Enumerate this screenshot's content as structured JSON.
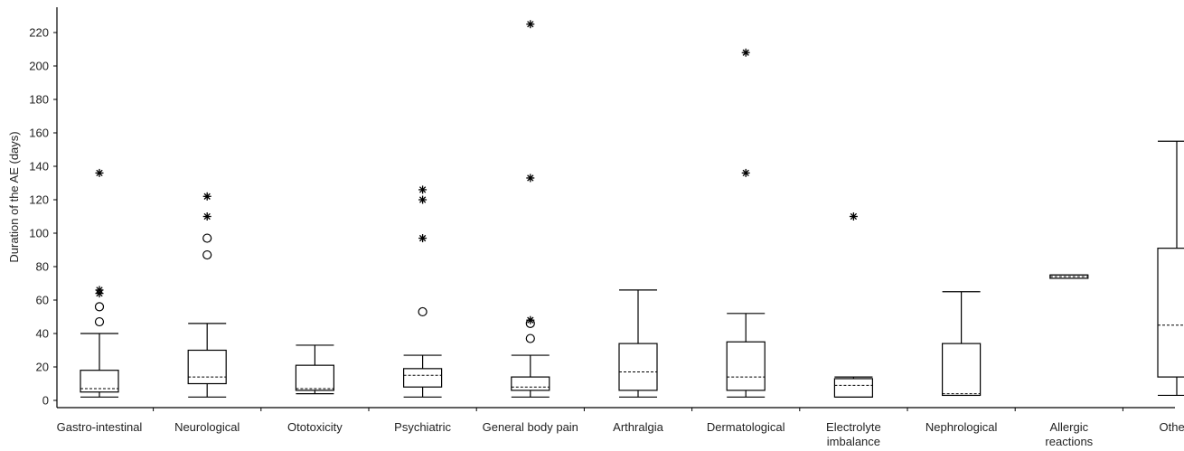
{
  "chart_data": {
    "type": "box",
    "ylabel": "Duration of the AE (days)",
    "ylim": [
      0,
      230
    ],
    "yticks": [
      0,
      20,
      40,
      60,
      80,
      100,
      120,
      140,
      160,
      180,
      200,
      220
    ],
    "grid": false,
    "legend": "none",
    "categories": [
      {
        "label": [
          "Gastro-intestinal"
        ],
        "whisker_low": 2,
        "q1": 5,
        "median": 7,
        "q3": 18,
        "whisker_high": 40,
        "outliers_circle": [
          47,
          56
        ],
        "outliers_star": [
          64,
          66,
          136
        ]
      },
      {
        "label": [
          "Neurological"
        ],
        "whisker_low": 2,
        "q1": 10,
        "median": 14,
        "q3": 30,
        "whisker_high": 46,
        "outliers_circle": [
          87,
          97
        ],
        "outliers_star": [
          110,
          122
        ]
      },
      {
        "label": [
          "Ototoxicity"
        ],
        "whisker_low": 4,
        "q1": 6,
        "median": 7,
        "q3": 21,
        "whisker_high": 33,
        "outliers_circle": [],
        "outliers_star": []
      },
      {
        "label": [
          "Psychiatric"
        ],
        "whisker_low": 2,
        "q1": 8,
        "median": 15,
        "q3": 19,
        "whisker_high": 27,
        "outliers_circle": [
          53
        ],
        "outliers_star": [
          97,
          120,
          126
        ]
      },
      {
        "label": [
          "General body pain"
        ],
        "whisker_low": 2,
        "q1": 6,
        "median": 8,
        "q3": 14,
        "whisker_high": 27,
        "outliers_circle": [
          37,
          46
        ],
        "outliers_star": [
          48,
          133,
          225
        ]
      },
      {
        "label": [
          "Arthralgia"
        ],
        "whisker_low": 2,
        "q1": 6,
        "median": 17,
        "q3": 34,
        "whisker_high": 66,
        "outliers_circle": [],
        "outliers_star": []
      },
      {
        "label": [
          "Dermatological"
        ],
        "whisker_low": 2,
        "q1": 6,
        "median": 14,
        "q3": 35,
        "whisker_high": 52,
        "outliers_circle": [],
        "outliers_star": [
          136,
          208
        ]
      },
      {
        "label": [
          "Electrolyte",
          "imbalance"
        ],
        "whisker_low": 2,
        "q1": 2,
        "median": 9,
        "q3": 13,
        "whisker_high": 14,
        "outliers_circle": [],
        "outliers_star": [
          110
        ]
      },
      {
        "label": [
          "Nephrological"
        ],
        "whisker_low": 3,
        "q1": 3,
        "median": 4,
        "q3": 34,
        "whisker_high": 65,
        "outliers_circle": [],
        "outliers_star": []
      },
      {
        "label": [
          "Allergic",
          "reactions"
        ],
        "whisker_low": 73,
        "q1": 73,
        "median": 74,
        "q3": 75,
        "whisker_high": 75,
        "outliers_circle": [],
        "outliers_star": []
      },
      {
        "label": [
          "Others"
        ],
        "whisker_low": 3,
        "q1": 14,
        "median": 45,
        "q3": 91,
        "whisker_high": 155,
        "outliers_circle": [],
        "outliers_star": []
      }
    ]
  }
}
